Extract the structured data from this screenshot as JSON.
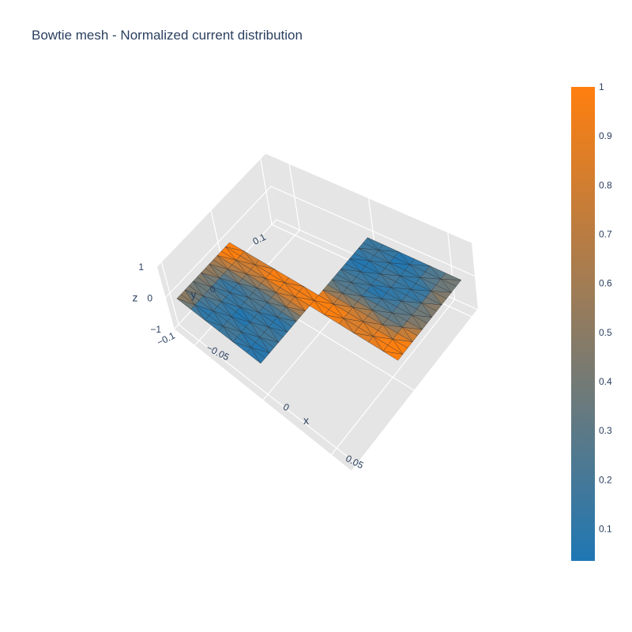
{
  "chart_data": {
    "type": "mesh3d",
    "title": "Bowtie mesh - Normalized current distribution",
    "axes": {
      "x": {
        "label": "x",
        "range": [
          -0.065,
          0.065
        ],
        "ticks": [
          {
            "value": -0.05,
            "label": "−0.05"
          },
          {
            "value": 0,
            "label": "0"
          },
          {
            "value": 0.05,
            "label": "0.05"
          }
        ]
      },
      "y": {
        "label": "y",
        "range": [
          -0.11,
          0.11
        ],
        "ticks": [
          {
            "value": -0.1,
            "label": "−0.1"
          },
          {
            "value": 0,
            "label": "0"
          },
          {
            "value": 0.1,
            "label": "0.1"
          }
        ]
      },
      "z": {
        "label": "z",
        "range": [
          -1,
          1
        ],
        "ticks": [
          {
            "value": -1,
            "label": "−1"
          },
          {
            "value": 0,
            "label": "0"
          },
          {
            "value": 1,
            "label": "1"
          }
        ]
      }
    },
    "colorscale": {
      "low": "#1f77b4",
      "high": "#ff7f0e",
      "min": 0.035,
      "max": 1.0
    },
    "colorbar": {
      "ticks": [
        {
          "value": 0.1,
          "label": "0.1"
        },
        {
          "value": 0.2,
          "label": "0.2"
        },
        {
          "value": 0.3,
          "label": "0.3"
        },
        {
          "value": 0.4,
          "label": "0.4"
        },
        {
          "value": 0.5,
          "label": "0.5"
        },
        {
          "value": 0.6,
          "label": "0.6"
        },
        {
          "value": 0.7,
          "label": "0.7"
        },
        {
          "value": 0.8,
          "label": "0.8"
        },
        {
          "value": 0.9,
          "label": "0.9"
        },
        {
          "value": 1,
          "label": "1"
        }
      ]
    },
    "mesh": {
      "z": 0,
      "nodes_note": "flat bowtie in plane z=0: two rectangular pads joined by a narrow feed strip",
      "pad1": {
        "x": [
          -0.06,
          -0.005
        ],
        "y": [
          -0.1,
          -0.01
        ]
      },
      "pad2": {
        "x": [
          0.005,
          0.06
        ],
        "y": [
          0.01,
          0.1
        ]
      },
      "feed": {
        "x": [
          -0.06,
          0.06
        ],
        "y": [
          -0.01,
          0.01
        ]
      },
      "current_peak": 1.0,
      "current_floor": 0.05
    },
    "grid": true,
    "background": "#e5e5e5"
  }
}
